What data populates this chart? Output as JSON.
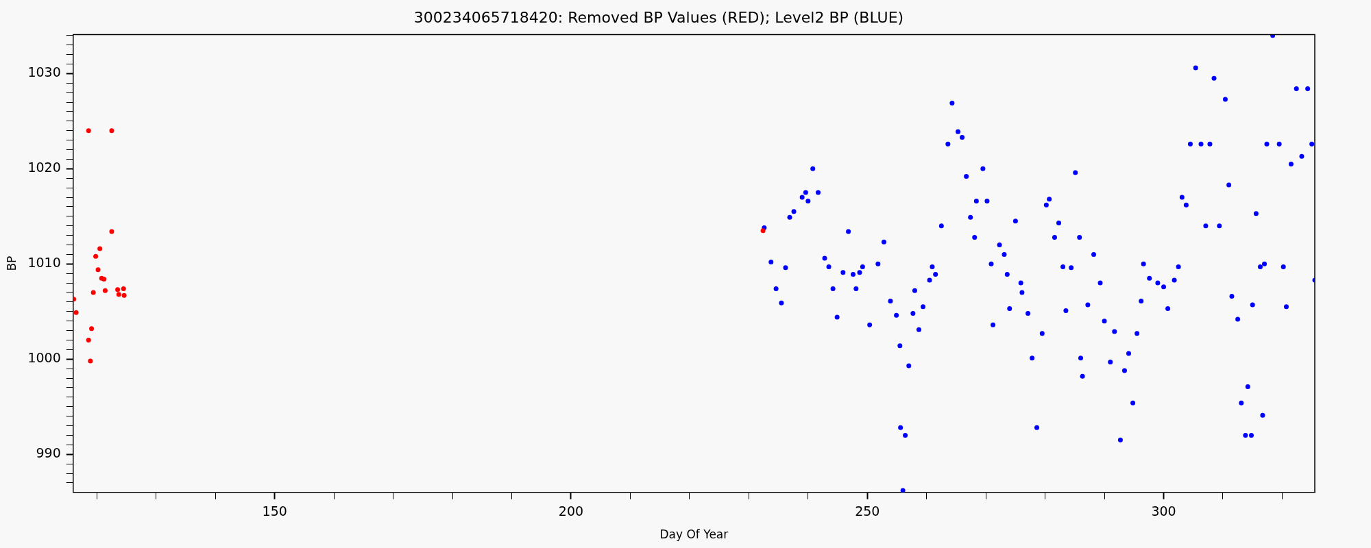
{
  "chart_data": {
    "type": "scatter",
    "title": "300234065718420: Removed BP Values (RED); Level2 BP (BLUE)",
    "xlabel": "Day Of Year",
    "ylabel": "BP",
    "marker": "circle",
    "xlim": [
      116,
      325.5
    ],
    "ylim": [
      986,
      1034.1
    ],
    "xticks": [
      {
        "value": 120,
        "label": null
      },
      {
        "value": 130,
        "label": null
      },
      {
        "value": 140,
        "label": null
      },
      150,
      {
        "value": 160,
        "label": null
      },
      {
        "value": 170,
        "label": null
      },
      {
        "value": 180,
        "label": null
      },
      {
        "value": 190,
        "label": null
      },
      200,
      {
        "value": 210,
        "label": null
      },
      {
        "value": 220,
        "label": null
      },
      {
        "value": 230,
        "label": null
      },
      {
        "value": 240,
        "label": null
      },
      250,
      {
        "value": 260,
        "label": null
      },
      {
        "value": 270,
        "label": null
      },
      {
        "value": 280,
        "label": null
      },
      {
        "value": 290,
        "label": null
      },
      300,
      {
        "value": 310,
        "label": null
      },
      {
        "value": 320,
        "label": null
      }
    ],
    "yticks": [
      {
        "value": 987,
        "label": null
      },
      {
        "value": 988,
        "label": null
      },
      {
        "value": 989,
        "label": null
      },
      990,
      {
        "value": 991,
        "label": null
      },
      {
        "value": 992,
        "label": null
      },
      {
        "value": 993,
        "label": null
      },
      {
        "value": 994,
        "label": null
      },
      {
        "value": 995,
        "label": null
      },
      {
        "value": 996,
        "label": null
      },
      {
        "value": 997,
        "label": null
      },
      {
        "value": 998,
        "label": null
      },
      {
        "value": 999,
        "label": null
      },
      1000,
      {
        "value": 1001,
        "label": null
      },
      {
        "value": 1002,
        "label": null
      },
      {
        "value": 1003,
        "label": null
      },
      {
        "value": 1004,
        "label": null
      },
      {
        "value": 1005,
        "label": null
      },
      {
        "value": 1006,
        "label": null
      },
      {
        "value": 1007,
        "label": null
      },
      {
        "value": 1008,
        "label": null
      },
      {
        "value": 1009,
        "label": null
      },
      1010,
      {
        "value": 1011,
        "label": null
      },
      {
        "value": 1012,
        "label": null
      },
      {
        "value": 1013,
        "label": null
      },
      {
        "value": 1014,
        "label": null
      },
      {
        "value": 1015,
        "label": null
      },
      {
        "value": 1016,
        "label": null
      },
      {
        "value": 1017,
        "label": null
      },
      {
        "value": 1018,
        "label": null
      },
      {
        "value": 1019,
        "label": null
      },
      1020,
      {
        "value": 1021,
        "label": null
      },
      {
        "value": 1022,
        "label": null
      },
      {
        "value": 1023,
        "label": null
      },
      {
        "value": 1024,
        "label": null
      },
      {
        "value": 1025,
        "label": null
      },
      {
        "value": 1026,
        "label": null
      },
      {
        "value": 1027,
        "label": null
      },
      {
        "value": 1028,
        "label": null
      },
      {
        "value": 1029,
        "label": null
      },
      1030,
      {
        "value": 1031,
        "label": null
      },
      {
        "value": 1032,
        "label": null
      },
      {
        "value": 1033,
        "label": null
      },
      {
        "value": 1034,
        "label": null
      }
    ],
    "series": [
      {
        "color": "#ff0000",
        "x": [
          116.1,
          116.5,
          118.6,
          122.5,
          118.6,
          118.9,
          119.1,
          119.4,
          119.8,
          120.2,
          120.5,
          120.8,
          121.2,
          121.4,
          122.5,
          123.5,
          123.7,
          124.5,
          124.6,
          232.4
        ],
        "values": [
          1006.3,
          1004.9,
          1024.0,
          1024.0,
          1002.0,
          999.8,
          1003.2,
          1007.0,
          1010.8,
          1009.4,
          1011.6,
          1008.5,
          1008.4,
          1007.2,
          1013.4,
          1007.3,
          1006.8,
          1007.4,
          1006.7,
          1013.5
        ]
      },
      {
        "color": "#0000ff",
        "x": [
          232.6,
          233.75,
          234.6,
          235.5,
          236.2,
          236.9,
          237.6,
          239.0,
          239.6,
          240.0,
          240.8,
          241.7,
          242.8,
          243.5,
          244.2,
          244.9,
          245.9,
          246.8,
          247.6,
          248.1,
          248.7,
          249.2,
          250.4,
          251.8,
          252.8,
          253.9,
          254.9,
          255.5,
          255.6,
          256.0,
          256.4,
          257.0,
          257.7,
          258.0,
          258.7,
          259.4,
          260.5,
          260.95,
          261.5,
          262.5,
          263.6,
          264.3,
          265.3,
          266.0,
          266.7,
          267.4,
          268.1,
          268.4,
          269.5,
          270.2,
          270.9,
          271.2,
          272.3,
          273.1,
          273.6,
          274.0,
          275.0,
          275.9,
          276.1,
          277.1,
          277.8,
          278.6,
          279.5,
          280.2,
          280.7,
          281.6,
          282.3,
          283.0,
          283.5,
          284.4,
          285.1,
          285.8,
          286.0,
          286.3,
          287.2,
          288.2,
          289.3,
          290.0,
          291.0,
          291.7,
          292.7,
          293.4,
          294.1,
          294.8,
          295.5,
          296.2,
          296.6,
          297.6,
          299.0,
          300.0,
          300.7,
          301.8,
          302.5,
          303.1,
          303.8,
          304.5,
          305.4,
          306.3,
          307.1,
          307.8,
          308.5,
          309.4,
          310.4,
          311.0,
          311.5,
          312.5,
          313.1,
          313.8,
          314.2,
          314.8,
          315.0,
          315.6,
          316.3,
          316.7,
          317.0,
          317.4,
          318.4,
          319.5,
          320.2,
          320.7,
          321.5,
          322.4,
          323.3,
          324.3,
          325.0,
          325.5
        ],
        "values": [
          1013.8,
          1010.2,
          1007.4,
          1005.9,
          1009.6,
          1014.9,
          1015.5,
          1017.0,
          1017.5,
          1016.6,
          1020.0,
          1017.5,
          1010.6,
          1009.7,
          1007.4,
          1004.4,
          1009.1,
          1013.4,
          1008.9,
          1007.4,
          1009.1,
          1009.7,
          1003.6,
          1010.0,
          1012.3,
          1006.1,
          1004.6,
          1001.4,
          992.8,
          986.2,
          992.0,
          999.3,
          1004.8,
          1007.2,
          1003.1,
          1005.5,
          1008.3,
          1009.7,
          1008.9,
          1014.0,
          1022.6,
          1026.9,
          1023.9,
          1023.3,
          1019.2,
          1014.9,
          1012.8,
          1016.6,
          1020.0,
          1016.6,
          1010.0,
          1003.6,
          1012.0,
          1011.0,
          1008.9,
          1005.3,
          1014.5,
          1008.0,
          1007.0,
          1004.8,
          1000.1,
          992.8,
          1002.7,
          1016.2,
          1016.8,
          1012.8,
          1014.3,
          1009.7,
          1005.1,
          1009.6,
          1019.6,
          1012.8,
          1000.1,
          998.2,
          1005.7,
          1011.0,
          1008.0,
          1004.0,
          999.7,
          1002.9,
          991.5,
          998.8,
          1000.6,
          995.4,
          1002.7,
          1006.1,
          1010.0,
          1008.5,
          1008.0,
          1007.6,
          1005.3,
          1008.3,
          1009.7,
          1017.0,
          1016.2,
          1022.6,
          1030.6,
          1022.6,
          1014.0,
          1022.6,
          1029.5,
          1014.0,
          1027.3,
          1018.3,
          1006.6,
          1004.2,
          995.4,
          992.0,
          997.1,
          992.0,
          1005.7,
          1015.3,
          1009.7,
          994.1,
          1010.0,
          1022.6,
          1034.0,
          1022.6,
          1009.7,
          1005.5,
          1020.5,
          1028.4,
          1021.3,
          1028.4,
          1022.6,
          1008.3
        ]
      }
    ]
  }
}
